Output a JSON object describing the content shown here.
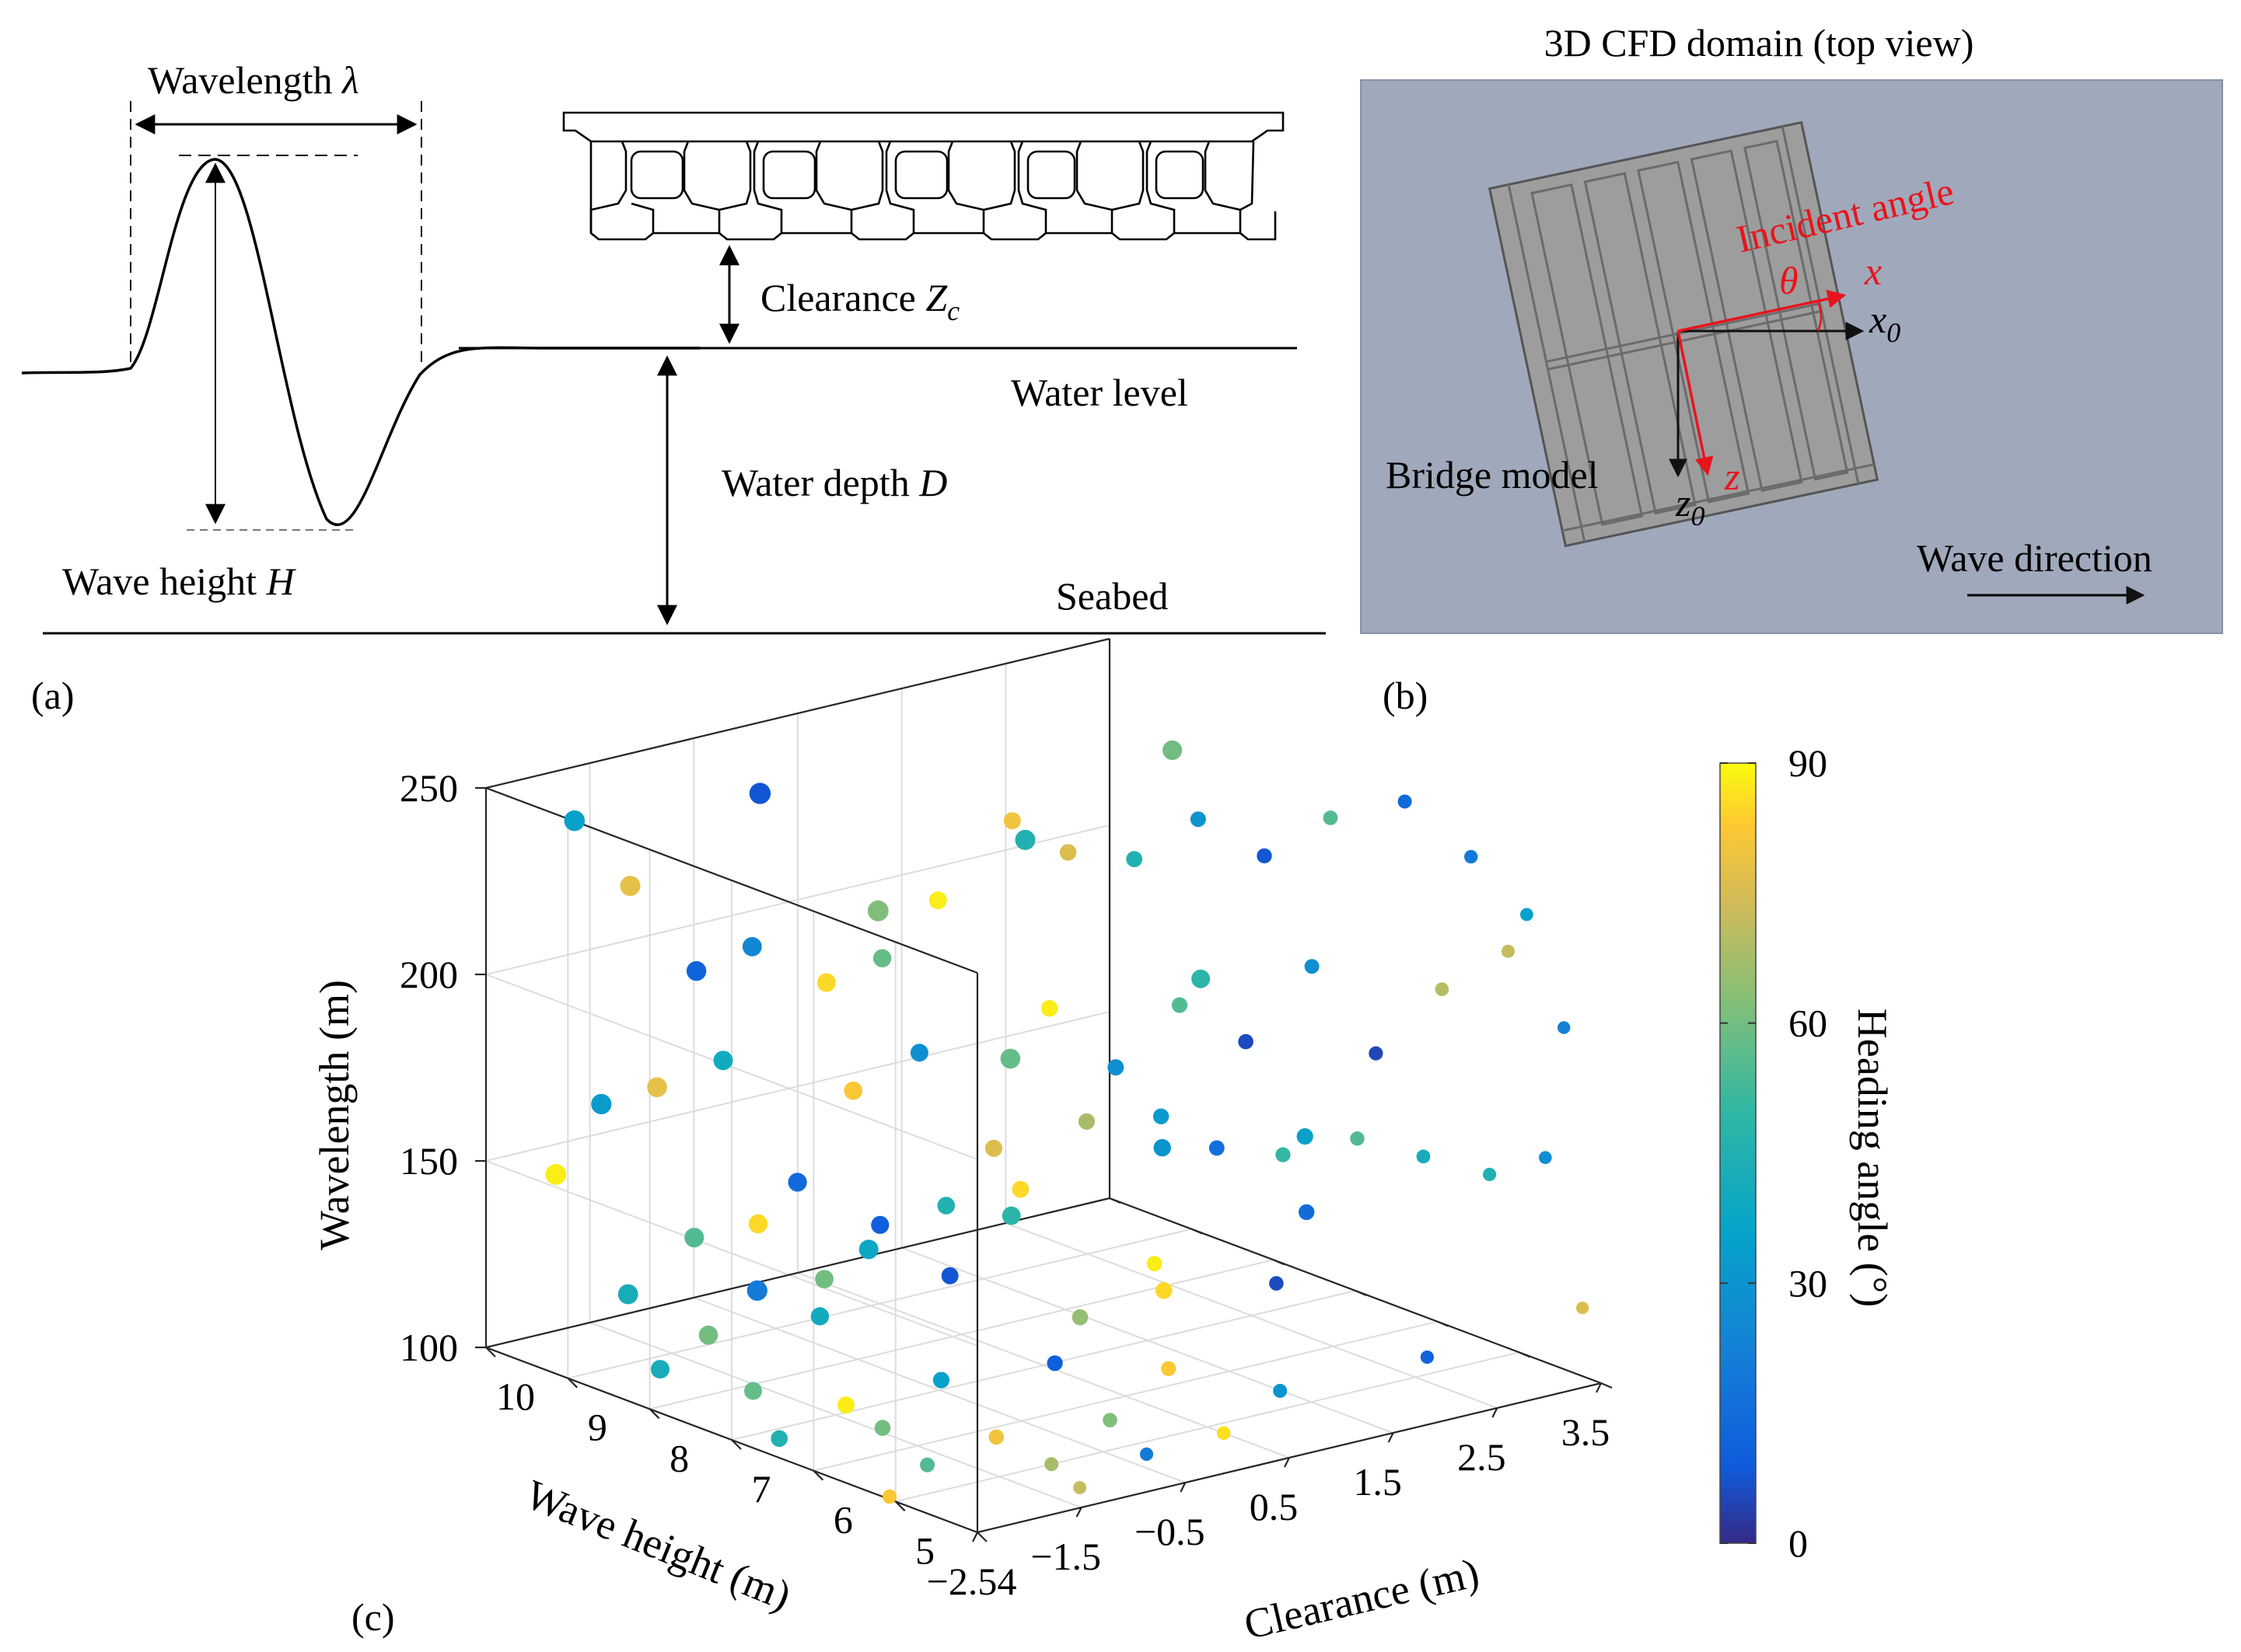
{
  "panel_a": {
    "tag": "(a)",
    "wavelength": "Wavelength",
    "lambda": "λ",
    "clearance": "Clearance",
    "zc_z": "Z",
    "zc_sub": "c",
    "water_level": "Water level",
    "water_depth": "Water depth",
    "depth_sym": "D",
    "wave_height": "Wave height",
    "height_sym": "H",
    "seabed": "Seabed"
  },
  "panel_b": {
    "tag": "(b)",
    "title": "3D CFD domain (top view)",
    "incident_angle": "Incident angle",
    "theta": "θ",
    "x": "x",
    "x0": "x",
    "x0_sub": "0",
    "z": "z",
    "z0": "z",
    "z0_sub": "0",
    "bridge_model": "Bridge model",
    "wave_direction": "Wave direction",
    "colors": {
      "background": "#a0a9bb",
      "deck": "#9d9d9d",
      "arrow": "#e8141c"
    }
  },
  "panel_c": {
    "tag": "(c)"
  },
  "chart_data": {
    "type": "scatter",
    "dimensions": "3d",
    "title": "",
    "xlabel": "Clearance (m)",
    "ylabel": "Wave height (m)",
    "zlabel": "Wavelength (m)",
    "colorbar_label": "Heading angle (°)",
    "xlim": [
      -2.5,
      3.5
    ],
    "ylim": [
      4,
      10
    ],
    "zlim": [
      100,
      250
    ],
    "clim": [
      0,
      90
    ],
    "colormap": "parula",
    "x_ticks": [
      "−2.5",
      "−1.5",
      "−0.5",
      "0.5",
      "1.5",
      "2.5",
      "3.5"
    ],
    "y_ticks": [
      "4",
      "5",
      "6",
      "7",
      "8",
      "9",
      "10"
    ],
    "z_ticks": [
      "100",
      "150",
      "200",
      "250"
    ],
    "colorbar_ticks": [
      "0",
      "30",
      "60",
      "90"
    ],
    "grid": true,
    "points": [
      {
        "clearance": -2.2,
        "wave_height": 9.3,
        "wavelength": 245,
        "heading": 35
      },
      {
        "clearance": -1.9,
        "wave_height": 9.0,
        "wavelength": 228,
        "heading": 78
      },
      {
        "clearance": -1.5,
        "wave_height": 8.7,
        "wavelength": 205,
        "heading": 12
      },
      {
        "clearance": -1.2,
        "wave_height": 8.4,
        "wavelength": 212,
        "heading": 25
      },
      {
        "clearance": -0.8,
        "wave_height": 8.0,
        "wavelength": 203,
        "heading": 85
      },
      {
        "clearance": -0.5,
        "wave_height": 7.7,
        "wavelength": 210,
        "heading": 58
      },
      {
        "clearance": -0.2,
        "wave_height": 7.4,
        "wavelength": 226,
        "heading": 88
      },
      {
        "clearance": 0.2,
        "wave_height": 7.0,
        "wavelength": 248,
        "heading": 80
      },
      {
        "clearance": 0.5,
        "wave_height": 6.7,
        "wavelength": 240,
        "heading": 76
      },
      {
        "clearance": 0.9,
        "wave_height": 6.4,
        "wavelength": 238,
        "heading": 45
      },
      {
        "clearance": 1.2,
        "wave_height": 6.0,
        "wavelength": 250,
        "heading": 30
      },
      {
        "clearance": 1.6,
        "wave_height": 5.7,
        "wavelength": 240,
        "heading": 8
      },
      {
        "clearance": 2.0,
        "wave_height": 5.4,
        "wavelength": 250,
        "heading": 55
      },
      {
        "clearance": 2.4,
        "wave_height": 5.0,
        "wavelength": 255,
        "heading": 14
      },
      {
        "clearance": 2.8,
        "wave_height": 4.7,
        "wavelength": 240,
        "heading": 20
      },
      {
        "clearance": 3.1,
        "wave_height": 4.4,
        "wavelength": 225,
        "heading": 35
      },
      {
        "clearance": -2.1,
        "wave_height": 9.1,
        "wavelength": 170,
        "heading": 32
      },
      {
        "clearance": -1.8,
        "wave_height": 8.8,
        "wavelength": 175,
        "heading": 78
      },
      {
        "clearance": -1.4,
        "wave_height": 8.5,
        "wavelength": 182,
        "heading": 40
      },
      {
        "clearance": -1.0,
        "wave_height": 8.1,
        "wavelength": 150,
        "heading": 14
      },
      {
        "clearance": -0.7,
        "wave_height": 7.8,
        "wavelength": 175,
        "heading": 82
      },
      {
        "clearance": -0.3,
        "wave_height": 7.5,
        "wavelength": 185,
        "heading": 28
      },
      {
        "clearance": 0.1,
        "wave_height": 7.1,
        "wavelength": 160,
        "heading": 76
      },
      {
        "clearance": 0.4,
        "wave_height": 6.8,
        "wavelength": 198,
        "heading": 88
      },
      {
        "clearance": 0.8,
        "wave_height": 6.5,
        "wavelength": 182,
        "heading": 28
      },
      {
        "clearance": 1.1,
        "wave_height": 6.1,
        "wavelength": 200,
        "heading": 55
      },
      {
        "clearance": 1.5,
        "wave_height": 5.8,
        "wavelength": 190,
        "heading": 6
      },
      {
        "clearance": 1.9,
        "wave_height": 5.5,
        "wavelength": 210,
        "heading": 28
      },
      {
        "clearance": 2.2,
        "wave_height": 5.1,
        "wavelength": 188,
        "heading": 5
      },
      {
        "clearance": 2.6,
        "wave_height": 4.8,
        "wavelength": 205,
        "heading": 70
      },
      {
        "clearance": 3.0,
        "wave_height": 4.5,
        "wavelength": 215,
        "heading": 72
      },
      {
        "clearance": 3.3,
        "wave_height": 4.2,
        "wavelength": 195,
        "heading": 22
      },
      {
        "clearance": -2.0,
        "wave_height": 8.9,
        "wavelength": 120,
        "heading": 42
      },
      {
        "clearance": -1.6,
        "wave_height": 8.6,
        "wavelength": 135,
        "heading": 55
      },
      {
        "clearance": -1.3,
        "wave_height": 8.2,
        "wavelength": 140,
        "heading": 85
      },
      {
        "clearance": -0.9,
        "wave_height": 7.9,
        "wavelength": 125,
        "heading": 60
      },
      {
        "clearance": -0.6,
        "wave_height": 7.6,
        "wavelength": 140,
        "heading": 10
      },
      {
        "clearance": -0.2,
        "wave_height": 7.3,
        "wavelength": 145,
        "heading": 45
      },
      {
        "clearance": 0.2,
        "wave_height": 6.9,
        "wavelength": 150,
        "heading": 85
      },
      {
        "clearance": 0.6,
        "wave_height": 6.6,
        "wavelength": 168,
        "heading": 68
      },
      {
        "clearance": 1.0,
        "wave_height": 6.2,
        "wavelength": 170,
        "heading": 32
      },
      {
        "clearance": 1.3,
        "wave_height": 5.9,
        "wavelength": 162,
        "heading": 16
      },
      {
        "clearance": 1.7,
        "wave_height": 5.6,
        "wavelength": 160,
        "heading": 50
      },
      {
        "clearance": 2.1,
        "wave_height": 5.2,
        "wavelength": 165,
        "heading": 55
      },
      {
        "clearance": 2.5,
        "wave_height": 4.9,
        "wavelength": 160,
        "heading": 42
      },
      {
        "clearance": 2.9,
        "wave_height": 4.6,
        "wavelength": 155,
        "heading": 45
      },
      {
        "clearance": 3.2,
        "wave_height": 4.3,
        "wavelength": 160,
        "heading": 28
      },
      {
        "clearance": -2.3,
        "wave_height": 9.4,
        "wavelength": 150,
        "heading": 88
      },
      {
        "clearance": -1.7,
        "wave_height": 8.3,
        "wavelength": 112,
        "heading": 60
      },
      {
        "clearance": -1.1,
        "wave_height": 7.7,
        "wavelength": 118,
        "heading": 40
      },
      {
        "clearance": -0.4,
        "wave_height": 7.0,
        "wavelength": 130,
        "heading": 8
      },
      {
        "clearance": 0.3,
        "wave_height": 6.3,
        "wavelength": 120,
        "heading": 65
      },
      {
        "clearance": 0.7,
        "wave_height": 5.9,
        "wavelength": 135,
        "heading": 88
      },
      {
        "clearance": 1.4,
        "wave_height": 5.3,
        "wavelength": 130,
        "heading": 6
      },
      {
        "clearance": 2.3,
        "wave_height": 4.6,
        "wavelength": 110,
        "heading": 12
      },
      {
        "clearance": 3.4,
        "wave_height": 4.1,
        "wavelength": 120,
        "heading": 76
      },
      {
        "clearance": -2.4,
        "wave_height": 8.0,
        "wavelength": 110,
        "heading": 42
      },
      {
        "clearance": -1.9,
        "wave_height": 7.5,
        "wavelength": 105,
        "heading": 58
      },
      {
        "clearance": -1.4,
        "wave_height": 7.0,
        "wavelength": 102,
        "heading": 88
      },
      {
        "clearance": -0.8,
        "wave_height": 6.6,
        "wavelength": 108,
        "heading": 35
      },
      {
        "clearance": -0.1,
        "wave_height": 6.1,
        "wavelength": 112,
        "heading": 10
      },
      {
        "clearance": 0.6,
        "wave_height": 5.6,
        "wavelength": 110,
        "heading": 82
      },
      {
        "clearance": 1.2,
        "wave_height": 5.0,
        "wavelength": 105,
        "heading": 30
      },
      {
        "clearance": -2.2,
        "wave_height": 6.8,
        "wavelength": 100,
        "heading": 45
      },
      {
        "clearance": -1.6,
        "wave_height": 6.3,
        "wavelength": 103,
        "heading": 60
      },
      {
        "clearance": -0.9,
        "wave_height": 5.8,
        "wavelength": 100,
        "heading": 80
      },
      {
        "clearance": -0.2,
        "wave_height": 5.3,
        "wavelength": 104,
        "heading": 62
      },
      {
        "clearance": 0.5,
        "wave_height": 4.8,
        "wavelength": 100,
        "heading": 86
      },
      {
        "clearance": -1.8,
        "wave_height": 5.5,
        "wavelength": 101,
        "heading": 55
      },
      {
        "clearance": -1.0,
        "wave_height": 5.0,
        "wavelength": 100,
        "heading": 68
      },
      {
        "clearance": -0.4,
        "wave_height": 4.6,
        "wavelength": 102,
        "heading": 20
      },
      {
        "clearance": -2.4,
        "wave_height": 5.2,
        "wavelength": 99,
        "heading": 82
      },
      {
        "clearance": -1.2,
        "wave_height": 4.4,
        "wavelength": 100,
        "heading": 72
      },
      {
        "clearance": 2.7,
        "wave_height": 6.6,
        "wavelength": 150,
        "heading": 35
      },
      {
        "clearance": 1.8,
        "wave_height": 7.2,
        "wavelength": 148,
        "heading": 30
      },
      {
        "clearance": 0.9,
        "wave_height": 7.9,
        "wavelength": 130,
        "heading": 48
      },
      {
        "clearance": 0.0,
        "wave_height": 8.5,
        "wavelength": 122,
        "heading": 38
      },
      {
        "clearance": -0.6,
        "wave_height": 9.1,
        "wavelength": 110,
        "heading": 20
      },
      {
        "clearance": 1.6,
        "wave_height": 8.8,
        "wavelength": 160,
        "heading": 58
      },
      {
        "clearance": 2.8,
        "wave_height": 8.0,
        "wavelength": 180,
        "heading": 48
      },
      {
        "clearance": 0.8,
        "wave_height": 9.4,
        "wavelength": 200,
        "heading": 62
      },
      {
        "clearance": 1.9,
        "wave_height": 9.0,
        "wavelength": 215,
        "heading": 45
      },
      {
        "clearance": 3.0,
        "wave_height": 8.6,
        "wavelength": 235,
        "heading": 60
      },
      {
        "clearance": -0.1,
        "wave_height": 9.7,
        "wavelength": 235,
        "heading": 8
      },
      {
        "clearance": 2.4,
        "wave_height": 6.2,
        "wavelength": 135,
        "heading": 15
      },
      {
        "clearance": 1.5,
        "wave_height": 6.8,
        "wavelength": 115,
        "heading": 85
      }
    ]
  }
}
